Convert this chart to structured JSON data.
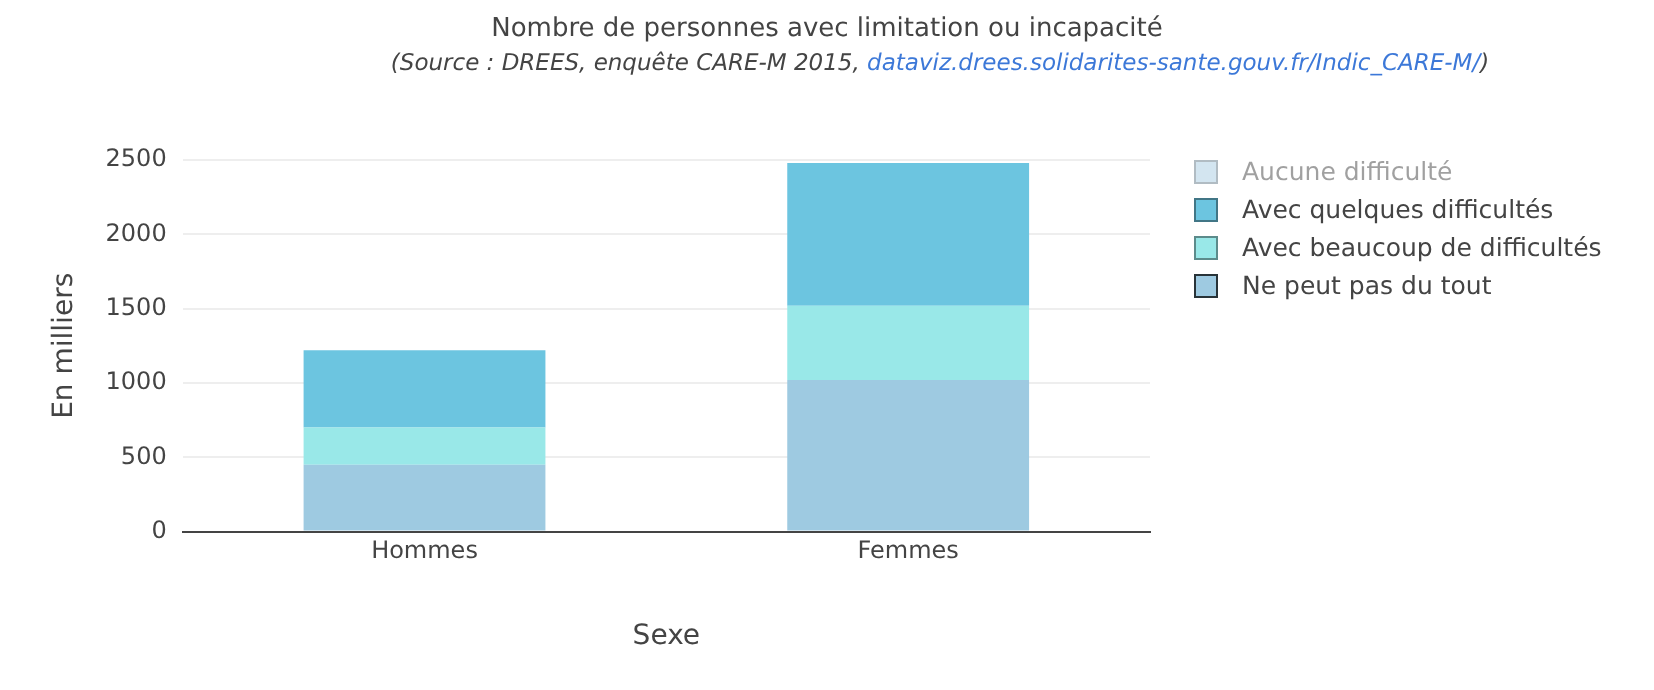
{
  "chart_data": {
    "type": "bar",
    "title": "Nombre de personnes avec limitation ou incapacité",
    "subtitle": "(Source : DREES, enquête CARE-M 2015, dataviz.drees.solidarites-sante.gouv.fr/Indic_CARE-M/)",
    "xlabel": "Sexe",
    "ylabel": "En milliers",
    "categories": [
      "Hommes",
      "Femmes"
    ],
    "stacked": true,
    "series": [
      {
        "name": "Ne peut pas du tout",
        "color": "#9ecae1",
        "values": [
          450,
          1020
        ]
      },
      {
        "name": "Avec beaucoup de difficultés",
        "color": "#99e8e8",
        "values": [
          250,
          500
        ]
      },
      {
        "name": "Avec quelques difficultés",
        "color": "#6cc5e0",
        "values": [
          520,
          960
        ]
      },
      {
        "name": "Aucune difficulté",
        "color": "#a9cde3",
        "values": [
          null,
          null
        ]
      }
    ],
    "ylim": [
      0,
      2500
    ],
    "yticks": [
      0,
      500,
      1000,
      1500,
      2000,
      2500
    ],
    "grid": "y",
    "legend": "top right"
  }
}
